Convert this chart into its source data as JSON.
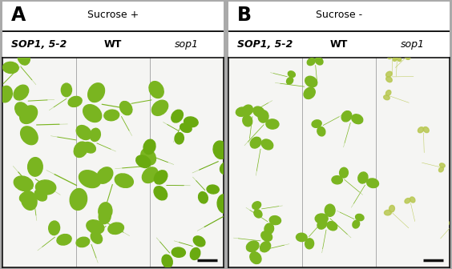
{
  "panel_A_title": "Sucrose +",
  "panel_B_title": "Sucrose -",
  "panel_A_label": "A",
  "panel_B_label": "B",
  "col_labels": [
    "SOP1, 5-2",
    "WT",
    "sop1"
  ],
  "fig_bg": "#aaaaaa",
  "panel_bg": "white",
  "photo_bg": "#f5f5f3",
  "plant_green_A": "#7ab520",
  "plant_green_B": "#8ab820",
  "plant_pale_B3": "#c8d870",
  "border_color": "#111111",
  "divider_color": "#aaaaaa",
  "scale_bar_color": "#111111",
  "title_line_color": "#111111",
  "title_fontsize": 9,
  "label_fontsize": 17,
  "col_label_fontsize": 9
}
